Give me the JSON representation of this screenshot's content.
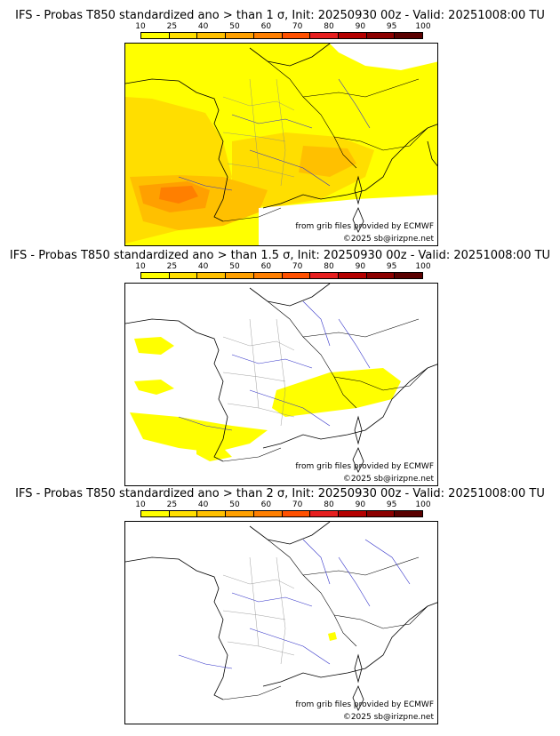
{
  "legend": {
    "ticks": [
      "10",
      "25",
      "40",
      "50",
      "60",
      "70",
      "80",
      "90",
      "95",
      "100"
    ],
    "colors": [
      "#ffff00",
      "#ffde00",
      "#ffc000",
      "#ffa000",
      "#ff7f00",
      "#ff5000",
      "#e61e1e",
      "#b40000",
      "#8c0000",
      "#5a0000"
    ]
  },
  "panels": [
    {
      "title": "IFS - Probas T850  standardized ano > than 1 σ, Init: 20250930 00z - Valid: 20251008:00 TU",
      "source_credit": "from grib files provided by ECMWF",
      "copyright": "©2025 sb@irizpne.net"
    },
    {
      "title": "IFS - Probas T850  standardized ano > than 1.5 σ, Init: 20250930 00z - Valid: 20251008:00 TU",
      "source_credit": "from grib files provided by ECMWF",
      "copyright": "©2025 sb@irizpne.net"
    },
    {
      "title": "IFS - Probas T850  standardized ano > than 2 σ, Init: 20250930 00z - Valid: 20251008:00 TU",
      "source_credit": "from grib files provided by ECMWF",
      "copyright": "©2025 sb@irizpne.net"
    }
  ]
}
